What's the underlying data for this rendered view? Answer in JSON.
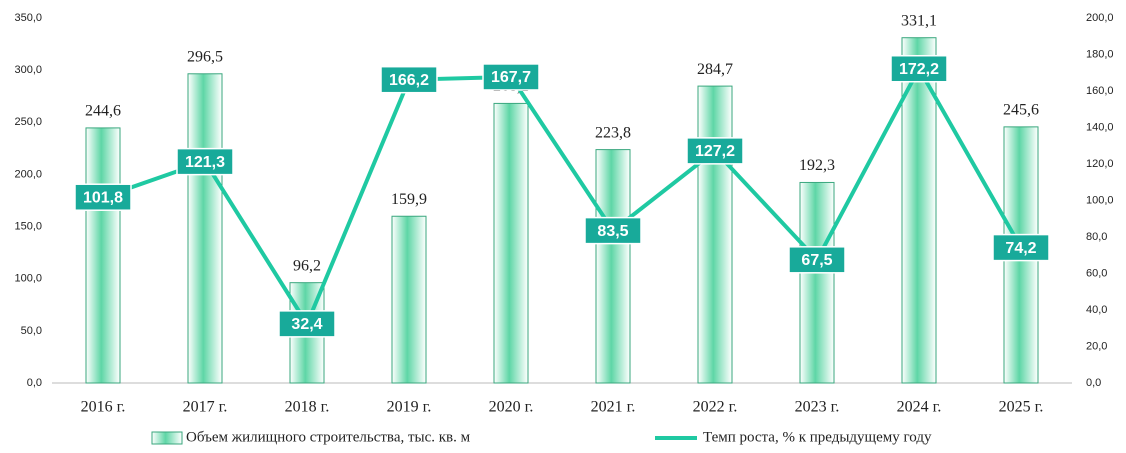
{
  "chart_data": {
    "type": "bar",
    "categories": [
      "2016 г.",
      "2017 г.",
      "2018 г.",
      "2019 г.",
      "2020 г.",
      "2021 г.",
      "2022 г.",
      "2023 г.",
      "2024 г.",
      "2025 г."
    ],
    "series": [
      {
        "name": "Объем жилищного строительства, тыс. кв. м",
        "type": "bar",
        "color": "#5ed6a6",
        "values": [
          244.6,
          296.5,
          96.2,
          159.9,
          268.1,
          223.8,
          284.7,
          192.3,
          331.1,
          245.6
        ],
        "value_labels": [
          "244,6",
          "296,5",
          "96,2",
          "159,9",
          "268,1",
          "223,8",
          "284,7",
          "192,3",
          "331,1",
          "245,6"
        ]
      },
      {
        "name": "Темп роста, % к предыдущему году",
        "type": "line",
        "axis": "y2",
        "color": "#1fc9a2",
        "label_color": "#18aa9a",
        "values": [
          101.8,
          121.3,
          32.4,
          166.2,
          167.7,
          83.5,
          127.2,
          67.5,
          172.2,
          74.2
        ],
        "value_labels": [
          "101,8",
          "121,3",
          "32,4",
          "166,2",
          "167,7",
          "83,5",
          "127,2",
          "67,5",
          "172,2",
          "74,2"
        ]
      }
    ],
    "ylim": [
      0,
      350
    ],
    "yticks": [
      {
        "value": 0,
        "label": "0,0"
      },
      {
        "value": 50,
        "label": "50,0"
      },
      {
        "value": 100,
        "label": "100,0"
      },
      {
        "value": 150,
        "label": "150,0"
      },
      {
        "value": 200,
        "label": "200,0"
      },
      {
        "value": 250,
        "label": "250,0"
      },
      {
        "value": 300,
        "label": "300,0"
      },
      {
        "value": 350,
        "label": "350,0"
      }
    ],
    "y2lim": [
      0,
      200
    ],
    "y2ticks": [
      {
        "value": 0,
        "label": "0,0"
      },
      {
        "value": 20,
        "label": "20,0"
      },
      {
        "value": 40,
        "label": "40,0"
      },
      {
        "value": 60,
        "label": "60,0"
      },
      {
        "value": 80,
        "label": "80,0"
      },
      {
        "value": 100,
        "label": "100,0"
      },
      {
        "value": 120,
        "label": "120,0"
      },
      {
        "value": 140,
        "label": "140,0"
      },
      {
        "value": 160,
        "label": "160,0"
      },
      {
        "value": 180,
        "label": "180,0"
      },
      {
        "value": 200,
        "label": "200,0"
      }
    ],
    "legend": "bottom"
  }
}
